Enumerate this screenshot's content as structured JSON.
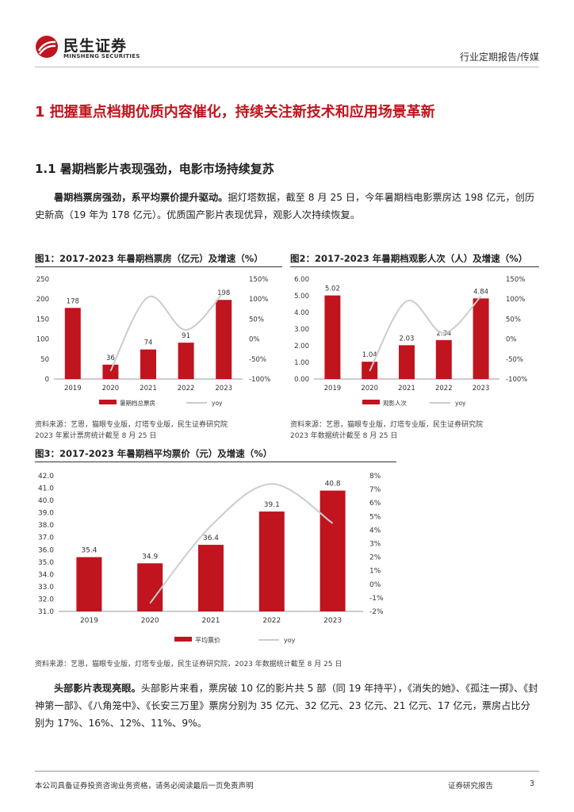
{
  "header": {
    "logo_cn": "民生证券",
    "logo_en": "MINSHENG SECURITIES",
    "report_type": "行业定期报告/传媒"
  },
  "heading1": "1 把握重点档期优质内容催化，持续关注新技术和应用场景革新",
  "heading2": "1.1 暑期档影片表现强劲，电影市场持续复苏",
  "para1": {
    "bold": "暑期档票房强劲，系平均票价提升驱动。",
    "text": "据灯塔数据，截至 8 月 25 日，今年暑期档电影票房达 198 亿元，创历史新高（19 年为 178 亿元）。优质国产影片表现优异，观影人次持续恢复。"
  },
  "fig1": {
    "title": "图1：2017-2023 年暑期档票房（亿元）及增速（%）",
    "source": "资料来源：艺恩，猫眼专业版，灯塔专业版，民生证券研究院",
    "note": "2023 年累计票房统计截至 8 月 25 日"
  },
  "fig2": {
    "title": "图2：2017-2023 年暑期档观影人次（人）及增速（%）",
    "source": "资料来源：艺恩，猫眼专业版，灯塔专业版，民生证券研究院",
    "note": "2023 年数据统计截至 8 月 25 日"
  },
  "fig3": {
    "title": "图3：2017-2023 年暑期档平均票价（元）及增速（%）",
    "source": "资料来源：艺恩，猫眼专业版，灯塔专业版，民生证券研究院，2023 年数据统计截至 8 月 25 日"
  },
  "para2": {
    "bold": "头部影片表现亮眼。",
    "text": "头部影片来看，票房破 10 亿的影片共 5 部（同 19 年持平），《消失的她》、《孤注一掷》、《封神第一部》、《八角笼中》、《长安三万里》票房分别为 35 亿元、32 亿元、23 亿元、21 亿元、17 亿元，票房占比分别为 17%、16%、12%、11%、9%。"
  },
  "footer": {
    "disclaimer": "本公司具备证券投资咨询业务资格，请务必阅读最后一页免责声明",
    "label": "证券研究报告",
    "page": "3"
  },
  "colors": {
    "bar": "#c0141e",
    "line": "#cccccc",
    "heading": "#c0141e"
  },
  "chart_data": [
    {
      "type": "bar",
      "categories": [
        "2019",
        "2020",
        "2021",
        "2022",
        "2023"
      ],
      "series": [
        {
          "name": "暑期档总票房",
          "type": "bar",
          "values": [
            178,
            36,
            74,
            91,
            198
          ],
          "axis": "left"
        },
        {
          "name": "yoy",
          "type": "line",
          "values": [
            null,
            -80,
            105,
            23,
            118
          ],
          "axis": "right"
        }
      ],
      "left_ticks": [
        "250",
        "200",
        "150",
        "100",
        "50",
        "0"
      ],
      "right_ticks": [
        "150%",
        "100%",
        "50%",
        "0%",
        "-50%",
        "-100%"
      ],
      "ylim": [
        0,
        250
      ],
      "y2lim": [
        -100,
        150
      ],
      "labels": [
        "178",
        "36",
        "74",
        "91",
        "198"
      ],
      "legend": "bottom"
    },
    {
      "type": "bar",
      "categories": [
        "2019",
        "2020",
        "2021",
        "2022",
        "2023"
      ],
      "series": [
        {
          "name": "观影人次",
          "type": "bar",
          "values": [
            5.02,
            1.04,
            2.03,
            2.34,
            4.84
          ],
          "axis": "left"
        },
        {
          "name": "yoy",
          "type": "line",
          "values": [
            null,
            -80,
            95,
            15,
            107
          ],
          "axis": "right"
        }
      ],
      "left_ticks": [
        "6.00",
        "5.00",
        "4.00",
        "3.00",
        "2.00",
        "1.00",
        "0.00"
      ],
      "right_ticks": [
        "150%",
        "100%",
        "50%",
        "0%",
        "-50%",
        "-100%"
      ],
      "ylim": [
        0,
        6
      ],
      "y2lim": [
        -100,
        150
      ],
      "labels": [
        "5.02",
        "1.04",
        "2.03",
        "2.34",
        "4.84"
      ],
      "legend": "bottom"
    },
    {
      "type": "bar",
      "categories": [
        "2019",
        "2020",
        "2021",
        "2022",
        "2023"
      ],
      "series": [
        {
          "name": "平均票价",
          "type": "bar",
          "values": [
            35.4,
            34.9,
            36.4,
            39.1,
            40.8
          ],
          "axis": "left"
        },
        {
          "name": "yoy",
          "type": "line",
          "values": [
            null,
            -1.4,
            4.3,
            7.4,
            4.5
          ],
          "axis": "right"
        }
      ],
      "left_ticks": [
        "42.0",
        "41.0",
        "40.0",
        "39.0",
        "38.0",
        "37.0",
        "36.0",
        "35.0",
        "34.0",
        "33.0",
        "32.0",
        "31.0"
      ],
      "right_ticks": [
        "8%",
        "7%",
        "6%",
        "5%",
        "4%",
        "3%",
        "2%",
        "1%",
        "0%",
        "-1%",
        "-2%"
      ],
      "ylim": [
        31,
        42
      ],
      "y2lim": [
        -2,
        8
      ],
      "labels": [
        "35.4",
        "34.9",
        "36.4",
        "39.1",
        "40.8"
      ],
      "legend": "bottom"
    }
  ]
}
